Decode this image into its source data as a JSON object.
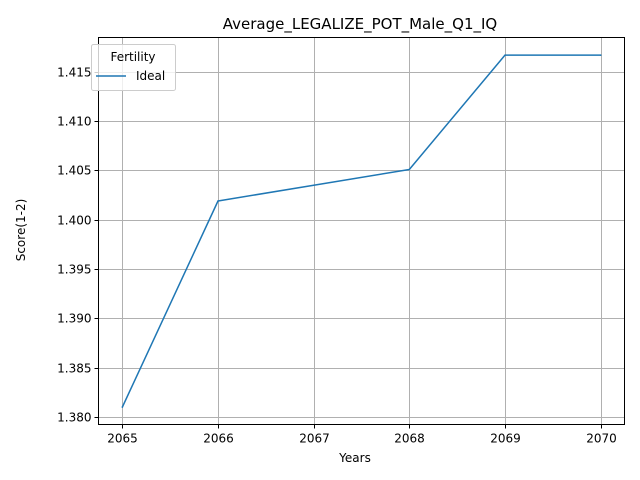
{
  "chart_data": {
    "type": "line",
    "title": "Average_LEGALIZE_POT_Male_Q1_IQ",
    "xlabel": "Years",
    "ylabel": "Score(1-2)",
    "x": [
      2065,
      2066,
      2067,
      2068,
      2069,
      2070
    ],
    "xticks": [
      "2065",
      "2066",
      "2067",
      "2068",
      "2069",
      "2070"
    ],
    "yticks": [
      "1.380",
      "1.385",
      "1.390",
      "1.395",
      "1.400",
      "1.405",
      "1.410",
      "1.415"
    ],
    "xlim": [
      2064.75,
      2070.25
    ],
    "ylim": [
      1.37922,
      1.41849
    ],
    "grid": true,
    "legend": {
      "title": "Fertility",
      "placement": "upper left"
    },
    "series": [
      {
        "name": "Ideal",
        "color": "#1f77b4",
        "values": [
          1.381,
          1.4019,
          1.4035,
          1.4051,
          1.4167,
          1.4167
        ]
      }
    ]
  }
}
